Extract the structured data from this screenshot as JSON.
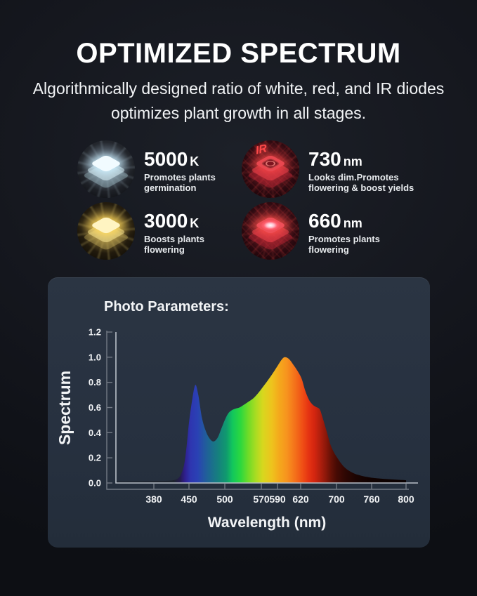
{
  "header": {
    "title": "OPTIMIZED SPECTRUM",
    "subtitle_lines": [
      "Algorithmically designed ratio of white, red, and IR diodes",
      "optimizes plant growth in all stages."
    ]
  },
  "features": [
    {
      "value": "5000",
      "unit": "K",
      "desc_lines": [
        "Promotes plants",
        "germination"
      ]
    },
    {
      "value": "730",
      "unit": "nm",
      "badge": "IR",
      "desc_lines": [
        "Looks dim.Promotes",
        "flowering & boost yields"
      ]
    },
    {
      "value": "3000",
      "unit": "K",
      "desc_lines": [
        "Boosts plants",
        "flowering"
      ]
    },
    {
      "value": "660",
      "unit": "nm",
      "desc_lines": [
        "Promotes plants",
        "flowering"
      ]
    }
  ],
  "panel": {
    "title": "Photo Parameters:"
  },
  "chart_data": {
    "type": "area",
    "title": "Photo Parameters:",
    "xlabel": "Wavelength (nm)",
    "ylabel": "Spectrum",
    "ylim": [
      0,
      1.2
    ],
    "y_tick_labels": [
      "0.0",
      "0.2",
      "0.4",
      "0.6",
      "0.8",
      "1.0",
      "1.2"
    ],
    "x_ticks": [
      380,
      450,
      500,
      570,
      590,
      620,
      700,
      760,
      800
    ],
    "x_axis_note": "non-linear wavelength axis; ticks approximately evenly spaced except compressed 570-590-620 cluster",
    "grid": false,
    "legend": "none",
    "points": [
      [
        305,
        0.012
      ],
      [
        380,
        0.015
      ],
      [
        410,
        0.018
      ],
      [
        425,
        0.03
      ],
      [
        433,
        0.06
      ],
      [
        440,
        0.14
      ],
      [
        445,
        0.28
      ],
      [
        450,
        0.48
      ],
      [
        455,
        0.68
      ],
      [
        459,
        0.78
      ],
      [
        463,
        0.7
      ],
      [
        468,
        0.52
      ],
      [
        473,
        0.42
      ],
      [
        478,
        0.36
      ],
      [
        484,
        0.33
      ],
      [
        490,
        0.36
      ],
      [
        495,
        0.43
      ],
      [
        500,
        0.5
      ],
      [
        506,
        0.55
      ],
      [
        512,
        0.575
      ],
      [
        520,
        0.59
      ],
      [
        528,
        0.6
      ],
      [
        536,
        0.62
      ],
      [
        545,
        0.645
      ],
      [
        555,
        0.675
      ],
      [
        565,
        0.72
      ],
      [
        575,
        0.79
      ],
      [
        583,
        0.86
      ],
      [
        590,
        0.93
      ],
      [
        596,
        0.985
      ],
      [
        600,
        1.0
      ],
      [
        605,
        0.985
      ],
      [
        610,
        0.945
      ],
      [
        616,
        0.89
      ],
      [
        622,
        0.83
      ],
      [
        630,
        0.735
      ],
      [
        638,
        0.665
      ],
      [
        646,
        0.625
      ],
      [
        654,
        0.605
      ],
      [
        660,
        0.595
      ],
      [
        664,
        0.575
      ],
      [
        668,
        0.53
      ],
      [
        674,
        0.46
      ],
      [
        680,
        0.385
      ],
      [
        687,
        0.3
      ],
      [
        694,
        0.245
      ],
      [
        700,
        0.21
      ],
      [
        708,
        0.155
      ],
      [
        716,
        0.115
      ],
      [
        724,
        0.09
      ],
      [
        732,
        0.072
      ],
      [
        742,
        0.058
      ],
      [
        752,
        0.048
      ],
      [
        762,
        0.04
      ],
      [
        775,
        0.032
      ],
      [
        788,
        0.026
      ],
      [
        800,
        0.022
      ]
    ],
    "gradient_stops": [
      [
        305,
        "#1e242e"
      ],
      [
        420,
        "#1e242e"
      ],
      [
        432,
        "#241b4e"
      ],
      [
        442,
        "#2f1f8e"
      ],
      [
        452,
        "#2e35b0"
      ],
      [
        462,
        "#2a41b4"
      ],
      [
        472,
        "#225a9e"
      ],
      [
        482,
        "#1b6f8c"
      ],
      [
        492,
        "#15837c"
      ],
      [
        503,
        "#109a6e"
      ],
      [
        515,
        "#12c75c"
      ],
      [
        530,
        "#2bd83f"
      ],
      [
        545,
        "#6fdb28"
      ],
      [
        560,
        "#abdc22"
      ],
      [
        572,
        "#d8d71e"
      ],
      [
        583,
        "#eec31d"
      ],
      [
        592,
        "#f4a91c"
      ],
      [
        602,
        "#f7941e"
      ],
      [
        613,
        "#f4701a"
      ],
      [
        625,
        "#ef4d15"
      ],
      [
        638,
        "#e53312"
      ],
      [
        650,
        "#d52610"
      ],
      [
        662,
        "#b5200e"
      ],
      [
        675,
        "#8f180a"
      ],
      [
        688,
        "#651106"
      ],
      [
        700,
        "#470b04"
      ],
      [
        715,
        "#2e0703"
      ],
      [
        735,
        "#1a0402"
      ],
      [
        760,
        "#100201"
      ],
      [
        800,
        "#0a0101"
      ]
    ],
    "colors": {
      "axis_spine": "#737a85",
      "plot_frame": "#b9c0c9",
      "tick_label": "#eef1f4"
    }
  }
}
